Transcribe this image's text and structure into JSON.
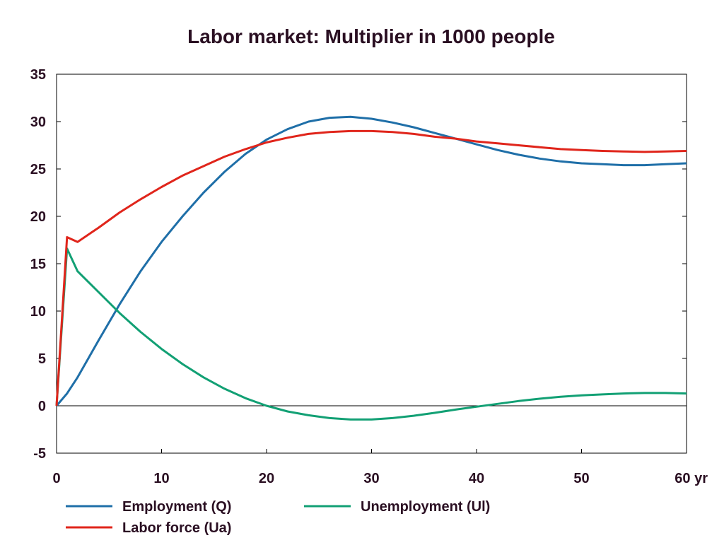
{
  "chart_data": {
    "type": "line",
    "title": "Labor market: Multiplier in 1000 people",
    "xlabel": "",
    "ylabel": "",
    "xlim": [
      0,
      60
    ],
    "ylim": [
      -5,
      35
    ],
    "x_ticks": [
      "0",
      "10",
      "20",
      "30",
      "40",
      "50",
      "60 yr"
    ],
    "y_ticks": [
      "35",
      "30",
      "25",
      "20",
      "15",
      "10",
      "5",
      "0",
      "-5"
    ],
    "grid": false,
    "legend_position": "bottom",
    "series": [
      {
        "name": "Employment (Q)",
        "color": "#1f6fa8",
        "x": [
          0,
          1,
          2,
          4,
          6,
          8,
          10,
          12,
          14,
          16,
          18,
          20,
          22,
          24,
          26,
          28,
          30,
          32,
          34,
          36,
          38,
          40,
          42,
          44,
          46,
          48,
          50,
          52,
          54,
          56,
          58,
          60
        ],
        "y": [
          0,
          1.3,
          3.0,
          6.9,
          10.7,
          14.2,
          17.3,
          20.0,
          22.5,
          24.7,
          26.6,
          28.1,
          29.2,
          30.0,
          30.4,
          30.5,
          30.3,
          29.9,
          29.4,
          28.8,
          28.2,
          27.6,
          27.0,
          26.5,
          26.1,
          25.8,
          25.6,
          25.5,
          25.4,
          25.4,
          25.5,
          25.6
        ]
      },
      {
        "name": "Unemployment (Ul)",
        "color": "#12a074",
        "x": [
          0,
          1,
          2,
          4,
          6,
          8,
          10,
          12,
          14,
          16,
          18,
          20,
          22,
          24,
          26,
          28,
          30,
          32,
          34,
          36,
          38,
          40,
          42,
          44,
          46,
          48,
          50,
          52,
          54,
          56,
          58,
          60
        ],
        "y": [
          0,
          16.6,
          14.2,
          12.0,
          9.8,
          7.8,
          6.0,
          4.4,
          3.0,
          1.8,
          0.8,
          0.0,
          -0.6,
          -1.0,
          -1.3,
          -1.45,
          -1.45,
          -1.3,
          -1.05,
          -0.75,
          -0.4,
          -0.1,
          0.2,
          0.5,
          0.75,
          0.95,
          1.1,
          1.2,
          1.3,
          1.35,
          1.35,
          1.3
        ]
      },
      {
        "name": "Labor force (Ua)",
        "color": "#e0251b",
        "x": [
          0,
          1,
          2,
          4,
          6,
          8,
          10,
          12,
          14,
          16,
          18,
          20,
          22,
          24,
          26,
          28,
          30,
          32,
          34,
          36,
          38,
          40,
          42,
          44,
          46,
          48,
          50,
          52,
          54,
          56,
          58,
          60
        ],
        "y": [
          0,
          17.8,
          17.3,
          18.8,
          20.4,
          21.8,
          23.1,
          24.3,
          25.3,
          26.3,
          27.1,
          27.8,
          28.3,
          28.7,
          28.9,
          29.0,
          29.0,
          28.9,
          28.7,
          28.4,
          28.2,
          27.9,
          27.7,
          27.5,
          27.3,
          27.1,
          27.0,
          26.9,
          26.85,
          26.8,
          26.85,
          26.9
        ]
      }
    ]
  }
}
